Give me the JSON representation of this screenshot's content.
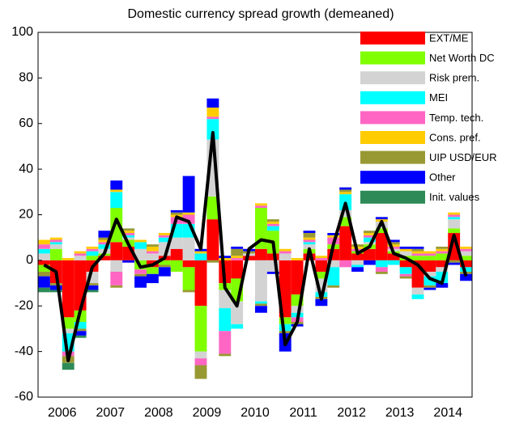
{
  "chart_data": {
    "type": "bar",
    "stacked": true,
    "title": "Domestic currency spread growth (demeaned)",
    "categories": [
      null,
      "2006",
      null,
      null,
      null,
      "2007",
      null,
      null,
      null,
      "2008",
      null,
      null,
      null,
      "2009",
      null,
      null,
      null,
      "2010",
      null,
      null,
      null,
      "2011",
      null,
      null,
      null,
      "2012",
      null,
      null,
      null,
      "2013",
      null,
      null,
      null,
      "2014",
      null,
      null
    ],
    "ylim": [
      -60,
      100
    ],
    "yticks": [
      -60,
      -40,
      -20,
      0,
      20,
      40,
      60,
      80,
      100
    ],
    "yticks_labels_note_free": null,
    "series": [
      {
        "name": "EXT/ME",
        "color": "#ff0000",
        "values": [
          -2,
          -10,
          -25,
          -22,
          -5,
          2,
          8,
          6,
          0,
          -3,
          2,
          5,
          -3,
          -20,
          18,
          -10,
          -8,
          2,
          5,
          3,
          -25,
          -15,
          3,
          -5,
          5,
          15,
          3,
          5,
          12,
          3,
          -3,
          -12,
          -5,
          -3,
          12,
          -3
        ]
      },
      {
        "name": "Net Worth DC",
        "color": "#80ff00",
        "values": [
          -3,
          5,
          -5,
          -5,
          2,
          1,
          15,
          3,
          -4,
          -3,
          -2,
          -5,
          -10,
          -20,
          10,
          -3,
          -10,
          0,
          18,
          10,
          -3,
          -5,
          2,
          -3,
          2,
          4,
          1,
          2,
          2,
          1,
          2,
          2,
          2,
          3,
          2,
          2
        ]
      },
      {
        "name": "Risk prem.",
        "color": "#d3d3d3",
        "values": [
          3,
          2,
          -2,
          2,
          -5,
          2,
          -5,
          1,
          5,
          3,
          6,
          5,
          10,
          -3,
          25,
          -8,
          -10,
          1,
          -18,
          -5,
          3,
          -3,
          2,
          -6,
          -3,
          3,
          -2,
          1,
          3,
          1,
          2,
          -3,
          -2,
          -2,
          4,
          2
        ]
      },
      {
        "name": "MEI",
        "color": "#00ffff",
        "values": [
          2,
          1,
          -8,
          -3,
          2,
          2,
          7,
          1,
          3,
          0,
          2,
          6,
          6,
          3,
          9,
          -10,
          -2,
          0,
          -1,
          2,
          -3,
          -2,
          1,
          -2,
          -8,
          7,
          -1,
          2,
          -3,
          -2,
          -3,
          -2,
          -4,
          -5,
          1,
          -2
        ]
      },
      {
        "name": "Temp. tech.",
        "color": "#ff66c4",
        "values": [
          2,
          1,
          -2,
          1,
          1,
          1,
          -6,
          1,
          -2,
          1,
          1,
          3,
          4,
          -3,
          1,
          -10,
          1,
          0,
          1,
          1,
          1,
          -2,
          1,
          1,
          3,
          -3,
          1,
          1,
          -2,
          1,
          -1,
          1,
          1,
          1,
          1,
          1
        ]
      },
      {
        "name": "Cons. pref.",
        "color": "#ffcc00",
        "values": [
          2,
          1,
          1,
          1,
          1,
          1,
          1,
          1,
          1,
          2,
          1,
          1,
          1,
          1,
          4,
          1,
          1,
          0,
          1,
          1,
          1,
          1,
          1,
          1,
          1,
          1,
          1,
          1,
          1,
          1,
          1,
          1,
          1,
          1,
          1,
          1
        ]
      },
      {
        "name": "UIP USD/EUR",
        "color": "#999933",
        "values": [
          -2,
          -1,
          -3,
          -1,
          -1,
          1,
          -1,
          1,
          -1,
          1,
          -1,
          1,
          -1,
          -6,
          -1,
          -1,
          3,
          1,
          -1,
          1,
          -1,
          -1,
          2,
          -1,
          -1,
          1,
          1,
          1,
          -1,
          1,
          -1,
          1,
          -1,
          1,
          -1,
          -1
        ]
      },
      {
        "name": "Other",
        "color": "#0000ff",
        "values": [
          -5,
          -2,
          0,
          -2,
          -2,
          3,
          4,
          -1,
          -5,
          -4,
          -4,
          1,
          16,
          1,
          4,
          1,
          1,
          1,
          -3,
          -1,
          -8,
          -1,
          1,
          -3,
          1,
          1,
          -2,
          -2,
          1,
          1,
          1,
          1,
          -1,
          -2,
          -1,
          -3
        ]
      },
      {
        "name": "Init. values",
        "color": "#2e8b57",
        "values": [
          -2,
          -1,
          -3,
          -1,
          -1,
          0,
          0,
          0,
          0,
          0,
          0,
          0,
          0,
          0,
          0,
          0,
          0,
          0,
          0,
          0,
          0,
          0,
          0,
          0,
          0,
          0,
          0,
          0,
          0,
          0,
          0,
          0,
          0,
          0,
          0,
          0
        ]
      }
    ],
    "line": {
      "color": "#000000",
      "values": [
        -2,
        -5,
        -44,
        -22,
        -3,
        3,
        18,
        7,
        -3,
        -2,
        1,
        19,
        17,
        5,
        56,
        -12,
        -20,
        5,
        9,
        8,
        -37,
        -27,
        5,
        -17,
        7,
        25,
        3,
        6,
        17,
        3,
        1,
        -2,
        -8,
        -10,
        11,
        -7
      ]
    }
  }
}
